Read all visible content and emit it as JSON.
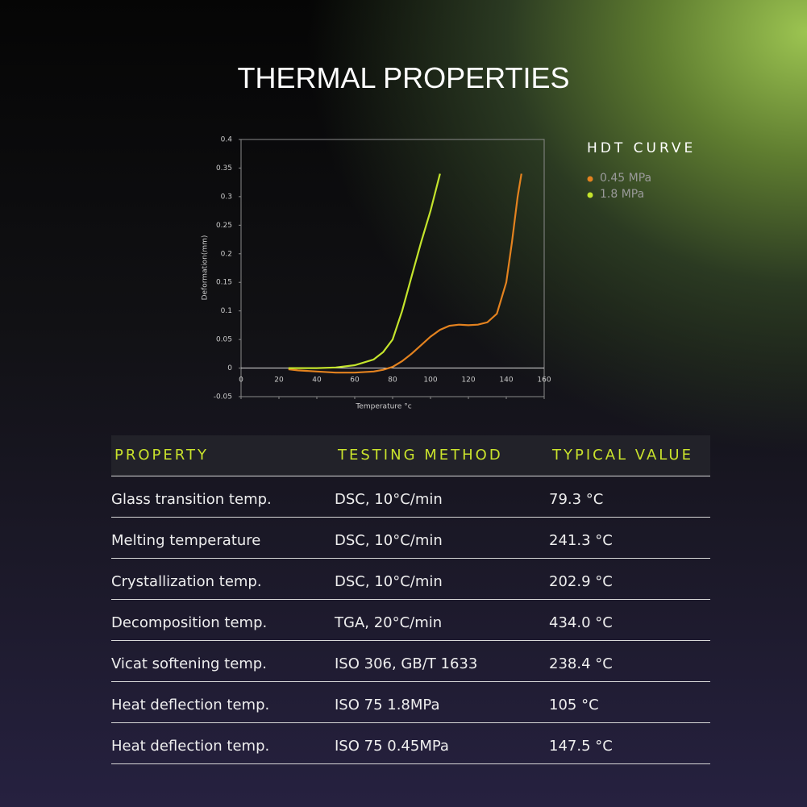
{
  "heading": "THERMAL PROPERTIES",
  "chart_data": {
    "type": "line",
    "xlabel": "Temperature °c",
    "ylabel": "Deformation(mm)",
    "legend_title": "HDT CURVE",
    "x": [
      25,
      30,
      40,
      50,
      60,
      70,
      75,
      80,
      85,
      90,
      95,
      100,
      105,
      110,
      115,
      120,
      125,
      130,
      135,
      140,
      143,
      146,
      148
    ],
    "series": [
      {
        "name": "0.45 MPa",
        "color": "#e3821f",
        "values": [
          -0.002,
          -0.004,
          -0.006,
          -0.008,
          -0.008,
          -0.006,
          -0.003,
          0.002,
          0.012,
          0.025,
          0.04,
          0.055,
          0.067,
          0.074,
          0.076,
          0.075,
          0.076,
          0.08,
          0.095,
          0.15,
          0.22,
          0.3,
          0.34
        ]
      },
      {
        "name": "1.8 MPa",
        "color": "#c4e42c",
        "values": [
          0,
          0,
          0,
          0.001,
          0.005,
          0.015,
          0.028,
          0.05,
          0.1,
          0.16,
          0.22,
          0.275,
          0.34,
          null,
          null,
          null,
          null,
          null,
          null,
          null,
          null,
          null,
          null
        ]
      }
    ],
    "xlim": [
      0,
      160
    ],
    "xticks": [
      0,
      20,
      40,
      60,
      80,
      100,
      120,
      140,
      160
    ],
    "ylim": [
      -0.05,
      0.4
    ],
    "yticks": [
      -0.05,
      0,
      0.05,
      0.1,
      0.15,
      0.2,
      0.25,
      0.3,
      0.35,
      0.4
    ]
  },
  "table": {
    "header": [
      "PROPERTY",
      "TESTING METHOD",
      "TYPICAL VALUE"
    ],
    "rows": [
      [
        "Glass transition temp.",
        "DSC, 10°C/min",
        "79.3 °C"
      ],
      [
        "Melting temperature",
        "DSC, 10°C/min",
        "241.3 °C"
      ],
      [
        "Crystallization temp.",
        "DSC, 10°C/min",
        "202.9 °C"
      ],
      [
        "Decomposition temp.",
        "TGA, 20°C/min",
        "434.0 °C"
      ],
      [
        "Vicat softening temp.",
        "ISO 306, GB/T 1633",
        "238.4 °C"
      ],
      [
        "Heat deflection temp.",
        "ISO 75 1.8MPa",
        "105 °C"
      ],
      [
        "Heat deflection temp.",
        "ISO 75 0.45MPa",
        "147.5 °C"
      ]
    ]
  }
}
